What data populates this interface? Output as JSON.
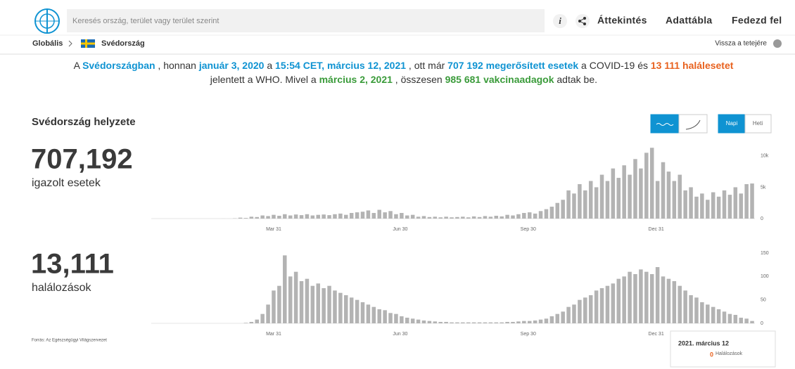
{
  "header": {
    "search_placeholder": "Keresés ország, terület vagy terület szerint",
    "nav": [
      "Áttekintés",
      "Adattábla",
      "Fedezd fel"
    ]
  },
  "breadcrumb": {
    "root": "Globális",
    "country": "Svédország",
    "back_to_top": "Vissza a tetejére"
  },
  "summary": {
    "line1": [
      "A ",
      "Svédországban",
      " , honnan ",
      "január 3, 2020",
      " a ",
      "15:54 CET, március 12, 2021",
      " , ott már ",
      "707 192 megerősített esetek",
      " a COVID-19 és ",
      "13 111 halálesetet"
    ],
    "line2": [
      "jelentett a WHO. Mivel a ",
      "március 2, 2021",
      " , összesen ",
      "985 681 vakcinaadagok",
      " adtak be."
    ]
  },
  "section_title": "Svédország helyzete",
  "toggle": [
    "Napi",
    "Heti"
  ],
  "stats": [
    {
      "value": "707,192",
      "label": "igazolt esetek"
    },
    {
      "value": "13,111",
      "label": "halálozások"
    }
  ],
  "source": "Forrás: Az Egészségügyi Világszervezet",
  "tooltip": {
    "date": "2021. március 12",
    "value": "0",
    "label": "Halálozások"
  },
  "chart_data": [
    {
      "type": "bar",
      "color": "#b3b3b3",
      "xlim": [
        0,
        434
      ],
      "ylim": [
        0,
        12000
      ],
      "xticks": [
        {
          "value": 88,
          "label": "Mar 31"
        },
        {
          "value": 179,
          "label": "Jun 30"
        },
        {
          "value": 271,
          "label": "Sep 30"
        },
        {
          "value": 363,
          "label": "Dec 31"
        }
      ],
      "yticks": [
        0,
        {
          "value": 5000,
          "label": "5k"
        },
        {
          "value": 10000,
          "label": "10k"
        }
      ],
      "x": [
        0,
        4,
        8,
        12,
        16,
        20,
        24,
        28,
        32,
        36,
        40,
        44,
        48,
        52,
        56,
        60,
        64,
        68,
        72,
        76,
        80,
        84,
        88,
        92,
        96,
        100,
        104,
        108,
        112,
        116,
        120,
        124,
        128,
        132,
        136,
        140,
        144,
        148,
        152,
        156,
        160,
        164,
        168,
        172,
        176,
        180,
        184,
        188,
        192,
        196,
        200,
        204,
        208,
        212,
        216,
        220,
        224,
        228,
        232,
        236,
        240,
        244,
        248,
        252,
        256,
        260,
        264,
        268,
        272,
        276,
        280,
        284,
        288,
        292,
        296,
        300,
        304,
        308,
        312,
        316,
        320,
        324,
        328,
        332,
        336,
        340,
        344,
        348,
        352,
        356,
        360,
        364,
        368,
        372,
        376,
        380,
        384,
        388,
        392,
        396,
        400,
        404,
        408,
        412,
        416,
        420,
        424,
        428,
        432
      ],
      "values": [
        0,
        0,
        0,
        0,
        0,
        0,
        0,
        0,
        0,
        0,
        0,
        0,
        1,
        10,
        5,
        40,
        150,
        100,
        300,
        250,
        500,
        400,
        600,
        450,
        700,
        500,
        650,
        550,
        700,
        500,
        600,
        650,
        550,
        700,
        800,
        600,
        900,
        1000,
        1100,
        1300,
        900,
        1400,
        1000,
        1200,
        700,
        900,
        500,
        600,
        300,
        400,
        250,
        300,
        200,
        300,
        200,
        250,
        300,
        200,
        350,
        250,
        400,
        300,
        450,
        350,
        600,
        500,
        700,
        900,
        1000,
        800,
        1200,
        1500,
        1900,
        2500,
        3000,
        4500,
        4000,
        5500,
        4500,
        6000,
        5000,
        7000,
        6000,
        8000,
        6500,
        8500,
        7000,
        9500,
        8000,
        10500,
        11300,
        6000,
        9000,
        7500,
        6000,
        7000,
        4500,
        5000,
        3500,
        4000,
        3000,
        4200,
        3500,
        4500,
        3800,
        5000,
        4000,
        5500,
        5600
      ]
    },
    {
      "type": "bar",
      "color": "#b3b3b3",
      "xlim": [
        0,
        434
      ],
      "ylim": [
        0,
        150
      ],
      "xticks": [
        {
          "value": 88,
          "label": "Mar 31"
        },
        {
          "value": 179,
          "label": "Jun 30"
        },
        {
          "value": 271,
          "label": "Sep 30"
        },
        {
          "value": 363,
          "label": "Dec 31"
        }
      ],
      "yticks": [
        0,
        50,
        100,
        150
      ],
      "x": [
        0,
        4,
        8,
        12,
        16,
        20,
        24,
        28,
        32,
        36,
        40,
        44,
        48,
        52,
        56,
        60,
        64,
        68,
        72,
        76,
        80,
        84,
        88,
        92,
        96,
        100,
        104,
        108,
        112,
        116,
        120,
        124,
        128,
        132,
        136,
        140,
        144,
        148,
        152,
        156,
        160,
        164,
        168,
        172,
        176,
        180,
        184,
        188,
        192,
        196,
        200,
        204,
        208,
        212,
        216,
        220,
        224,
        228,
        232,
        236,
        240,
        244,
        248,
        252,
        256,
        260,
        264,
        268,
        272,
        276,
        280,
        284,
        288,
        292,
        296,
        300,
        304,
        308,
        312,
        316,
        320,
        324,
        328,
        332,
        336,
        340,
        344,
        348,
        352,
        356,
        360,
        364,
        368,
        372,
        376,
        380,
        384,
        388,
        392,
        396,
        400,
        404,
        408,
        412,
        416,
        420,
        424,
        428,
        432
      ],
      "values": [
        0,
        0,
        0,
        0,
        0,
        0,
        0,
        0,
        0,
        0,
        0,
        0,
        0,
        0,
        0,
        0,
        0,
        1,
        3,
        8,
        20,
        40,
        70,
        80,
        145,
        100,
        110,
        90,
        95,
        80,
        85,
        75,
        80,
        70,
        65,
        60,
        55,
        50,
        45,
        40,
        35,
        30,
        28,
        22,
        20,
        15,
        12,
        10,
        8,
        6,
        5,
        4,
        3,
        3,
        2,
        2,
        2,
        2,
        2,
        2,
        2,
        2,
        2,
        2,
        3,
        3,
        4,
        5,
        5,
        6,
        8,
        10,
        15,
        20,
        25,
        35,
        40,
        50,
        55,
        60,
        70,
        75,
        80,
        85,
        95,
        100,
        110,
        105,
        115,
        110,
        105,
        120,
        100,
        95,
        90,
        80,
        70,
        60,
        55,
        45,
        40,
        35,
        30,
        25,
        20,
        18,
        12,
        10,
        5
      ]
    }
  ]
}
